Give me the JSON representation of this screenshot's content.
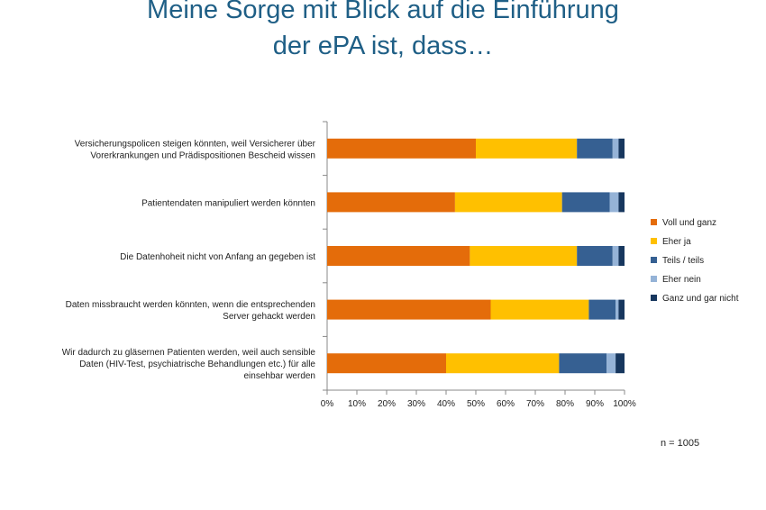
{
  "title_lines": [
    "Meine Sorge mit Blick auf die Einführung",
    "der ePA ist, dass…"
  ],
  "note": "n = 1005",
  "chart_data": {
    "type": "bar",
    "orientation": "horizontal",
    "stacked": true,
    "categories": [
      [
        "Versicherungspolicen steigen könnten, weil Versicherer über",
        "Vorerkrankungen und Prädispositionen Bescheid wissen"
      ],
      [
        "Patientendaten manipuliert werden könnten"
      ],
      [
        "Die Datenhoheit nicht von Anfang an gegeben ist"
      ],
      [
        "Daten missbraucht werden könnten, wenn die entsprechenden",
        "Server gehackt werden"
      ],
      [
        "Wir dadurch zu gläsernen Patienten werden, weil auch sensible",
        "Daten (HIV-Test, psychiatrische Behandlungen etc.) für alle",
        "einsehbar werden"
      ]
    ],
    "series": [
      {
        "name": "Voll und ganz",
        "color": "#e46c0a",
        "values": [
          50,
          43,
          48,
          55,
          40
        ]
      },
      {
        "name": "Eher ja",
        "color": "#ffc000",
        "values": [
          34,
          36,
          36,
          33,
          38
        ]
      },
      {
        "name": "Teils / teils",
        "color": "#366092",
        "values": [
          12,
          16,
          12,
          9,
          16
        ]
      },
      {
        "name": "Eher nein",
        "color": "#95b3d7",
        "values": [
          2,
          3,
          2,
          1,
          3
        ]
      },
      {
        "name": "Ganz und gar nicht",
        "color": "#17375e",
        "values": [
          2,
          2,
          2,
          2,
          3
        ]
      }
    ],
    "xlim": [
      0,
      100
    ],
    "xticks": [
      "0%",
      "10%",
      "20%",
      "30%",
      "40%",
      "50%",
      "60%",
      "70%",
      "80%",
      "90%",
      "100%"
    ],
    "legend_position": "right",
    "grid": false
  }
}
